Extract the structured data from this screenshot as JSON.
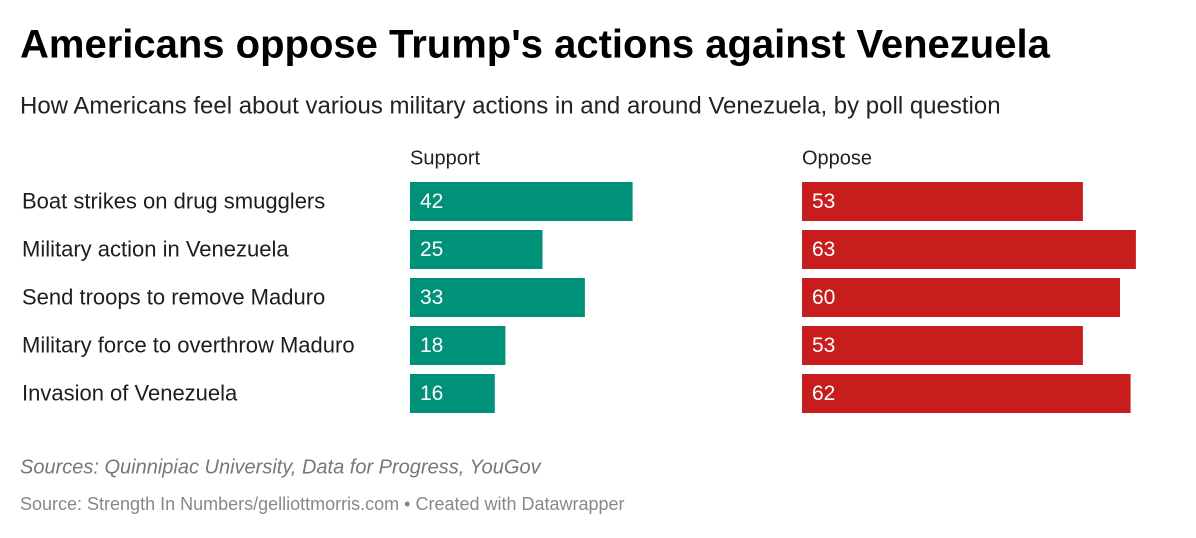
{
  "chart_data": {
    "type": "bar",
    "title": "Americans oppose Trump's actions against Venezuela",
    "subtitle": "How Americans feel about various military actions in and around Venezuela, by poll question",
    "categories": [
      "Boat strikes on drug smugglers",
      "Military action in Venezuela",
      "Send troops to remove Maduro",
      "Military force to overthrow Maduro",
      "Invasion of Venezuela"
    ],
    "series": [
      {
        "name": "Support",
        "color": "#009179",
        "values": [
          42,
          25,
          33,
          18,
          16
        ]
      },
      {
        "name": "Oppose",
        "color": "#c71e1d",
        "values": [
          53,
          63,
          60,
          53,
          62
        ]
      }
    ],
    "notes": "Sources: Quinnipiac University, Data for Progress, YouGov",
    "source": "Source: Strength In Numbers/gelliottmorris.com • Created with Datawrapper"
  }
}
